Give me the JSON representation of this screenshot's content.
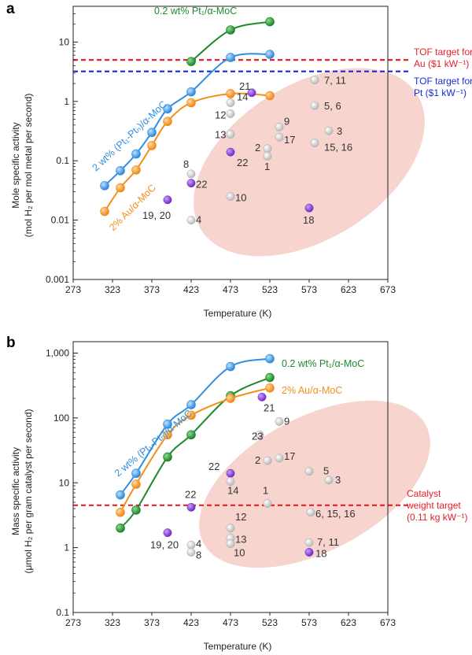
{
  "colors": {
    "blue": "#2f8fe0",
    "orange": "#f39019",
    "green": "#1e8a2e",
    "purple": "#7a2fc8",
    "grey": "#c8c8c8",
    "red": "#e8202a",
    "navy": "#1a2ad8",
    "ellipse": "#f4c8c0"
  },
  "chart_data": [
    {
      "panel": "a",
      "type": "scatter",
      "scale": "log",
      "xlabel": "Temperature (K)",
      "ylabel_line1": "Mole specific activity",
      "ylabel_line2": "(mol H₂ per mol metal per second)",
      "xlim": [
        273,
        673
      ],
      "ylim": [
        0.001,
        40
      ],
      "x_ticks": [
        "273",
        "323",
        "373",
        "423",
        "473",
        "523",
        "573",
        "623",
        "673"
      ],
      "y_ticks": [
        {
          "v": 10,
          "label": "10"
        },
        {
          "v": 1,
          "label": "1"
        },
        {
          "v": 0.1,
          "label": "0.1"
        },
        {
          "v": 0.01,
          "label": "0.01"
        },
        {
          "v": 0.001,
          "label": "0.001"
        }
      ],
      "hlines": [
        {
          "y": 5.0,
          "color": "red",
          "label_lines": [
            "TOF target for",
            "Au ($1 kW⁻¹)"
          ]
        },
        {
          "y": 3.2,
          "color": "navy",
          "label_lines": [
            "TOF target for",
            "Pt ($1 kW⁻¹)"
          ]
        }
      ],
      "series": [
        {
          "name": "0.2 wt% Pt₁/α-MoC",
          "color": "green",
          "x": [
            423,
            473,
            523
          ],
          "y": [
            4.7,
            16,
            22
          ]
        },
        {
          "name": "2 wt% (Pt₁-Ptₙ)/α-MoC",
          "color": "blue",
          "x": [
            313,
            333,
            353,
            373,
            393,
            423,
            473,
            523
          ],
          "y": [
            0.038,
            0.068,
            0.13,
            0.3,
            0.75,
            1.45,
            5.5,
            6.2
          ]
        },
        {
          "name": "2% Au/α-MoC",
          "color": "orange",
          "x": [
            313,
            333,
            353,
            373,
            393,
            423,
            473,
            523
          ],
          "y": [
            0.014,
            0.035,
            0.07,
            0.18,
            0.46,
            0.95,
            1.35,
            1.25
          ]
        }
      ],
      "references": [
        {
          "x": 580,
          "y": 2.3,
          "label": "7, 11",
          "color": "grey"
        },
        {
          "x": 580,
          "y": 0.85,
          "label": "5, 6",
          "color": "grey"
        },
        {
          "x": 580,
          "y": 0.2,
          "label": "15, 16",
          "color": "grey"
        },
        {
          "x": 598,
          "y": 0.32,
          "label": "3",
          "color": "grey"
        },
        {
          "x": 500,
          "y": 1.4,
          "label": "21",
          "color": "purple"
        },
        {
          "x": 473,
          "y": 0.95,
          "label": "14",
          "color": "grey"
        },
        {
          "x": 473,
          "y": 0.62,
          "label": "12",
          "color": "grey"
        },
        {
          "x": 473,
          "y": 0.28,
          "label": "13",
          "color": "grey"
        },
        {
          "x": 535,
          "y": 0.37,
          "label": "9",
          "color": "grey"
        },
        {
          "x": 535,
          "y": 0.25,
          "label": "17",
          "color": "grey"
        },
        {
          "x": 520,
          "y": 0.16,
          "label": "2",
          "color": "grey"
        },
        {
          "x": 520,
          "y": 0.12,
          "label": "1",
          "color": "grey"
        },
        {
          "x": 473,
          "y": 0.14,
          "label": "22",
          "color": "purple"
        },
        {
          "x": 423,
          "y": 0.06,
          "label": "8",
          "color": "grey"
        },
        {
          "x": 423,
          "y": 0.042,
          "label": "22",
          "color": "purple"
        },
        {
          "x": 393,
          "y": 0.022,
          "label": "19, 20",
          "color": "purple"
        },
        {
          "x": 473,
          "y": 0.025,
          "label": "10",
          "color": "grey"
        },
        {
          "x": 423,
          "y": 0.01,
          "label": "4",
          "color": "grey"
        },
        {
          "x": 573,
          "y": 0.016,
          "label": "18",
          "color": "purple"
        }
      ]
    },
    {
      "panel": "b",
      "type": "scatter",
      "scale": "log",
      "xlabel": "Temperature (K)",
      "ylabel_line1": "Mass specific activity",
      "ylabel_line2": "(μmol H₂ per gram catalyst per second)",
      "xlim": [
        273,
        673
      ],
      "ylim": [
        0.1,
        1500
      ],
      "x_ticks": [
        "273",
        "323",
        "373",
        "423",
        "473",
        "523",
        "573",
        "623",
        "673"
      ],
      "y_ticks": [
        {
          "v": 1000,
          "label": "1,000"
        },
        {
          "v": 100,
          "label": "100"
        },
        {
          "v": 10,
          "label": "10"
        },
        {
          "v": 1,
          "label": "1"
        },
        {
          "v": 0.1,
          "label": "0.1"
        }
      ],
      "hlines": [
        {
          "y": 4.5,
          "color": "red",
          "label_lines": [
            "Catalyst",
            "weight target",
            "(0.11 kg kW⁻¹)"
          ]
        }
      ],
      "series": [
        {
          "name": "0.2 wt% Pt₁/α-MoC",
          "color": "green",
          "x": [
            333,
            353,
            393,
            423,
            473,
            523
          ],
          "y": [
            2.0,
            3.8,
            25,
            55,
            220,
            420
          ]
        },
        {
          "name": "2 wt% (Pt₁-Ptₙ)/α-MoC",
          "color": "blue",
          "x": [
            333,
            353,
            393,
            423,
            473,
            523
          ],
          "y": [
            6.5,
            14,
            80,
            160,
            620,
            820
          ]
        },
        {
          "name": "2% Au/α-MoC",
          "color": "orange",
          "x": [
            333,
            353,
            393,
            423,
            473,
            523
          ],
          "y": [
            3.5,
            9.5,
            55,
            110,
            200,
            290
          ]
        }
      ],
      "references": [
        {
          "x": 513,
          "y": 210,
          "label": "21",
          "color": "purple"
        },
        {
          "x": 535,
          "y": 88,
          "label": "9",
          "color": "grey"
        },
        {
          "x": 510,
          "y": 55,
          "label": "23",
          "color": "grey"
        },
        {
          "x": 520,
          "y": 22,
          "label": "2",
          "color": "grey"
        },
        {
          "x": 535,
          "y": 24,
          "label": "17",
          "color": "grey"
        },
        {
          "x": 573,
          "y": 15,
          "label": "5",
          "color": "grey"
        },
        {
          "x": 598,
          "y": 11,
          "label": "3",
          "color": "grey"
        },
        {
          "x": 473,
          "y": 14,
          "label": "22",
          "color": "purple"
        },
        {
          "x": 473,
          "y": 10.5,
          "label": "14",
          "color": "grey"
        },
        {
          "x": 520,
          "y": 4.8,
          "label": "1",
          "color": "grey"
        },
        {
          "x": 423,
          "y": 4.2,
          "label": "22",
          "color": "purple"
        },
        {
          "x": 575,
          "y": 3.5,
          "label": "6, 15, 16",
          "color": "grey"
        },
        {
          "x": 473,
          "y": 2.0,
          "label": "12",
          "color": "grey"
        },
        {
          "x": 473,
          "y": 1.4,
          "label": "13",
          "color": "grey"
        },
        {
          "x": 473,
          "y": 1.15,
          "label": "10",
          "color": "grey"
        },
        {
          "x": 393,
          "y": 1.7,
          "label": "19, 20",
          "color": "purple"
        },
        {
          "x": 423,
          "y": 1.1,
          "label": "4",
          "color": "grey"
        },
        {
          "x": 423,
          "y": 0.85,
          "label": "8",
          "color": "grey"
        },
        {
          "x": 573,
          "y": 1.2,
          "label": "7, 11",
          "color": "grey"
        },
        {
          "x": 573,
          "y": 0.85,
          "label": "18",
          "color": "purple"
        }
      ]
    }
  ]
}
